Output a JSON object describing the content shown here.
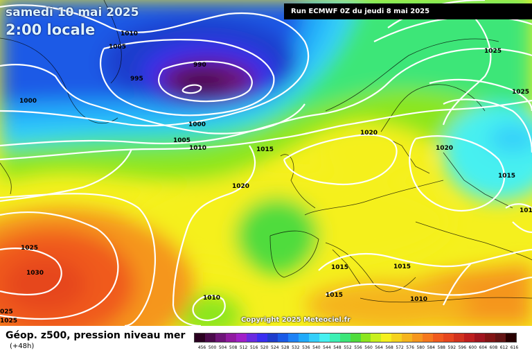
{
  "title": {
    "date": "samedi 10 mai 2025",
    "time": "2:00 locale"
  },
  "run_info": "Run ECMWF 0Z du jeudi 8 mai 2025",
  "copyright": "Copyright 2025 Meteociel.fr",
  "legend": {
    "title": "Géop. z500, pression niveau mer",
    "subtitle": "(+48h)",
    "ticks": [
      "456",
      "500",
      "504",
      "508",
      "512",
      "516",
      "520",
      "524",
      "528",
      "532",
      "536",
      "540",
      "544",
      "548",
      "552",
      "556",
      "560",
      "564",
      "568",
      "572",
      "576",
      "580",
      "584",
      "588",
      "592",
      "596",
      "600",
      "604",
      "608",
      "612",
      "616"
    ],
    "colors": [
      "#2a0020",
      "#4b0a4b",
      "#6e1478",
      "#901aa0",
      "#a020c8",
      "#6a2ae0",
      "#3a2ef0",
      "#1e3ccc",
      "#1a5ae6",
      "#1e82f5",
      "#20aafa",
      "#34cffa",
      "#46f0f0",
      "#3cf0b4",
      "#3ce678",
      "#50dc3c",
      "#8ce61e",
      "#c8f01e",
      "#f5f01e",
      "#f5d21e",
      "#f5b41e",
      "#f5961e",
      "#f5781e",
      "#f05a1e",
      "#e6461e",
      "#d2321e",
      "#be1e1e",
      "#a0141e",
      "#821414",
      "#641414",
      "#280000"
    ]
  },
  "pressure_labels": [
    {
      "text": "1010"
    },
    {
      "text": "1005"
    },
    {
      "text": "995"
    },
    {
      "text": "990"
    },
    {
      "text": "1000"
    },
    {
      "text": "1000"
    },
    {
      "text": "1005"
    },
    {
      "text": "1010"
    },
    {
      "text": "1015"
    },
    {
      "text": "1020"
    },
    {
      "text": "1020"
    },
    {
      "text": "1020"
    },
    {
      "text": "1025"
    },
    {
      "text": "1025"
    },
    {
      "text": "1015"
    },
    {
      "text": "101"
    },
    {
      "text": "1015"
    },
    {
      "text": "1015"
    },
    {
      "text": "1015"
    },
    {
      "text": "1010"
    },
    {
      "text": "1010"
    },
    {
      "text": "1025"
    },
    {
      "text": "1030"
    },
    {
      "text": "025"
    },
    {
      "text": "1025"
    }
  ]
}
